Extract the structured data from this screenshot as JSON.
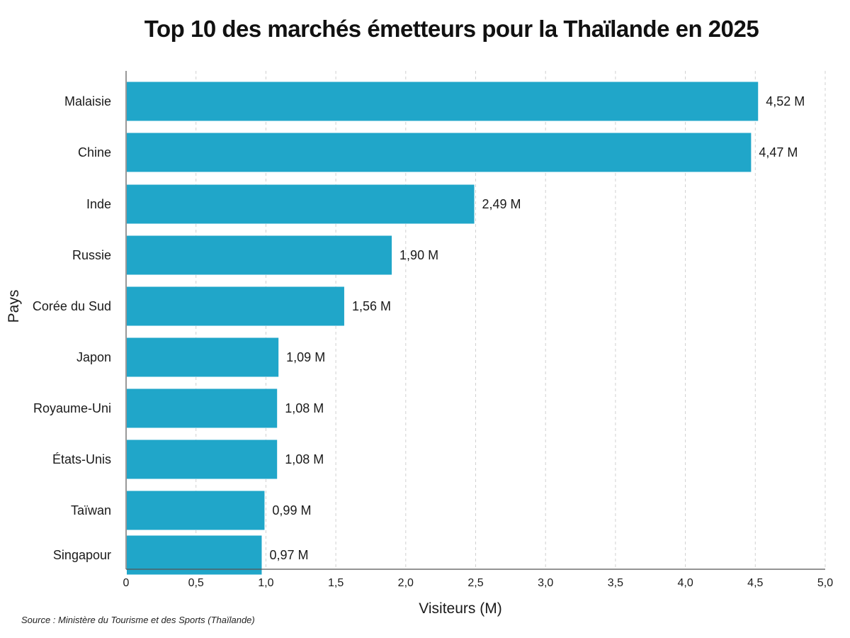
{
  "chart_data": {
    "type": "bar",
    "orientation": "horizontal",
    "title": "Top 10 des marchés émetteurs pour la Thaïlande en 2025",
    "xlabel": "Visiteurs (M)",
    "ylabel": "Pays",
    "categories": [
      "Malaisie",
      "Chine",
      "Inde",
      "Russie",
      "Corée du Sud",
      "Japon",
      "Royaume-Uni",
      "États-Unis",
      "Taïwan",
      "Singapour"
    ],
    "values": [
      4.52,
      4.47,
      2.49,
      1.9,
      1.56,
      1.09,
      1.08,
      1.08,
      0.99,
      0.97
    ],
    "value_labels": [
      "4,52 M",
      "4,47 M",
      "2,49 M",
      "1,90 M",
      "1,56 M",
      "1,09 M",
      "1,08 M",
      "1,08 M",
      "0,99 M",
      "0,97 M"
    ],
    "xlim": [
      0,
      5
    ],
    "xticks": [
      0,
      0.5,
      1,
      1.5,
      2,
      2.5,
      3,
      3.5,
      4,
      4.5,
      5
    ],
    "xtick_labels": [
      "0",
      "0,5",
      "1,0",
      "1,5",
      "2,0",
      "2,5",
      "3,0",
      "3,5",
      "4,0",
      "4,5",
      "5,0"
    ],
    "grid": "vertical-dashed",
    "bar_color": "#20a6c9",
    "grid_color": "#d0d0d0",
    "axis_color": "#555555"
  },
  "source": "Source : Ministère du Tourisme et des Sports (Thaïlande)"
}
